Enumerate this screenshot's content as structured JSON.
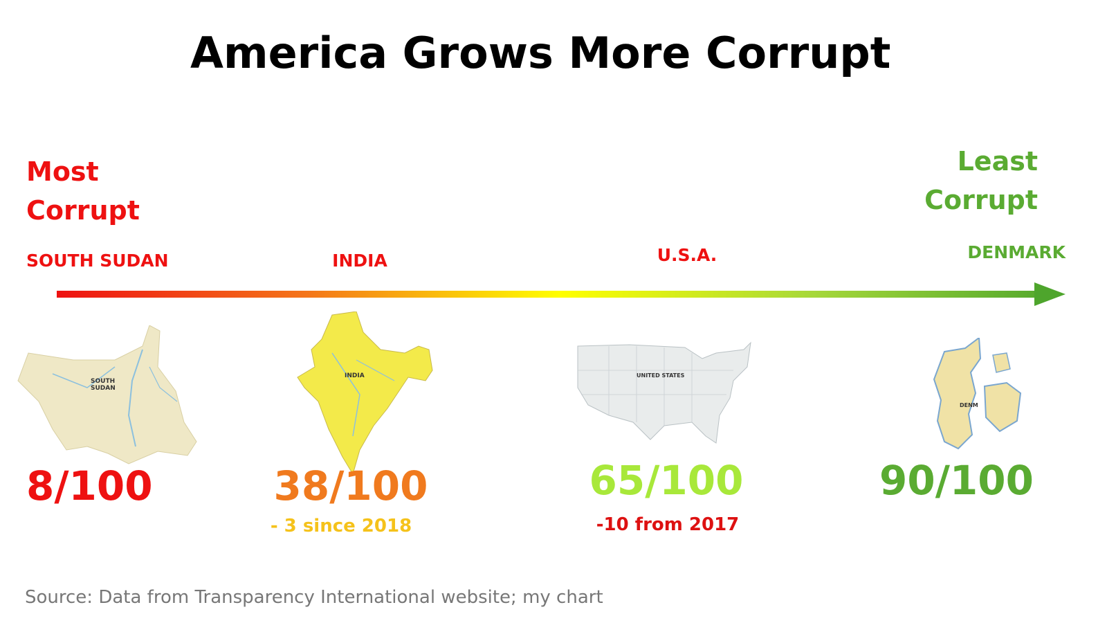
{
  "title": "America Grows More Corrupt",
  "scale_labels": {
    "most": [
      "Most",
      "Corrupt"
    ],
    "least": [
      "Least",
      "Corrupt"
    ]
  },
  "source": "Source: Data from Transparency International website; my chart",
  "colors": {
    "most_corrupt": "#ee1111",
    "india": "#f07a1e",
    "india_note": "#f5c21b",
    "usa": "#a8e83a",
    "denmark": "#5aab32",
    "usa_note": "#dd1111"
  },
  "chart_data": {
    "type": "scatter",
    "title": "America Grows More Corrupt",
    "xlim": [
      0,
      100
    ],
    "countries": [
      {
        "name": "SOUTH SUDAN",
        "score": 8,
        "score_label": "8/100",
        "note": "",
        "map_icon": "south-sudan-map-icon"
      },
      {
        "name": "INDIA",
        "score": 38,
        "score_label": "38/100",
        "note": "- 3 since 2018",
        "map_icon": "india-map-icon"
      },
      {
        "name": "U.S.A.",
        "score": 65,
        "score_label": "65/100",
        "note": "-10 from 2017",
        "map_icon": "usa-map-icon"
      },
      {
        "name": "DENMARK",
        "score": 90,
        "score_label": "90/100",
        "note": "",
        "map_icon": "denmark-map-icon"
      }
    ]
  }
}
